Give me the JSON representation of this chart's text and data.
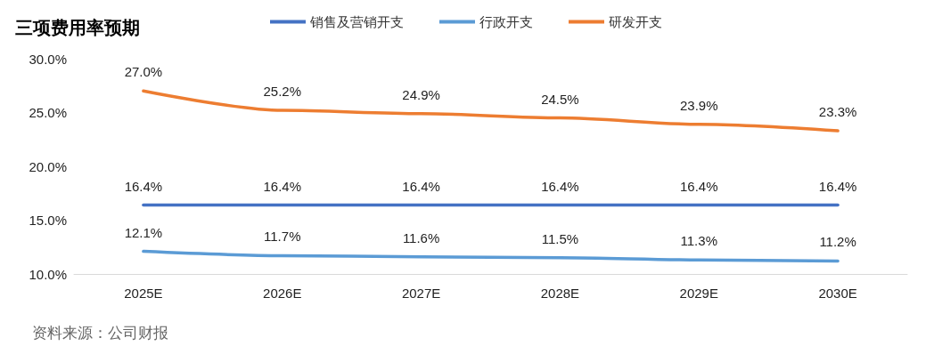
{
  "chart_data": {
    "type": "line",
    "title": "三项费用率预期",
    "annotations": [
      "资料来源：公司财报"
    ],
    "categories": [
      "2025E",
      "2026E",
      "2027E",
      "2028E",
      "2029E",
      "2030E"
    ],
    "series": [
      {
        "name": "销售及营销开支",
        "color": "#4472c4",
        "values": [
          16.4,
          16.4,
          16.4,
          16.4,
          16.4,
          16.4
        ],
        "value_labels": [
          "16.4%",
          "16.4%",
          "16.4%",
          "16.4%",
          "16.4%",
          "16.4%"
        ]
      },
      {
        "name": "行政开支",
        "color": "#5b9bd5",
        "values": [
          12.1,
          11.7,
          11.6,
          11.5,
          11.3,
          11.2
        ],
        "value_labels": [
          "12.1%",
          "11.7%",
          "11.6%",
          "11.5%",
          "11.3%",
          "11.2%"
        ]
      },
      {
        "name": "研发开支",
        "color": "#ed7d31",
        "values": [
          27.0,
          25.2,
          24.9,
          24.5,
          23.9,
          23.3
        ],
        "value_labels": [
          "27.0%",
          "25.2%",
          "24.9%",
          "24.5%",
          "23.9%",
          "23.3%"
        ]
      }
    ],
    "ylim": [
      10,
      30
    ],
    "yticks": [
      {
        "value": 10,
        "label": "10.0%"
      },
      {
        "value": 15,
        "label": "15.0%"
      },
      {
        "value": 20,
        "label": "20.0%"
      },
      {
        "value": 25,
        "label": "25.0%"
      },
      {
        "value": 30,
        "label": "30.0%"
      }
    ],
    "grid": false,
    "legend": "top",
    "marker": "none",
    "line_style": "solid"
  }
}
